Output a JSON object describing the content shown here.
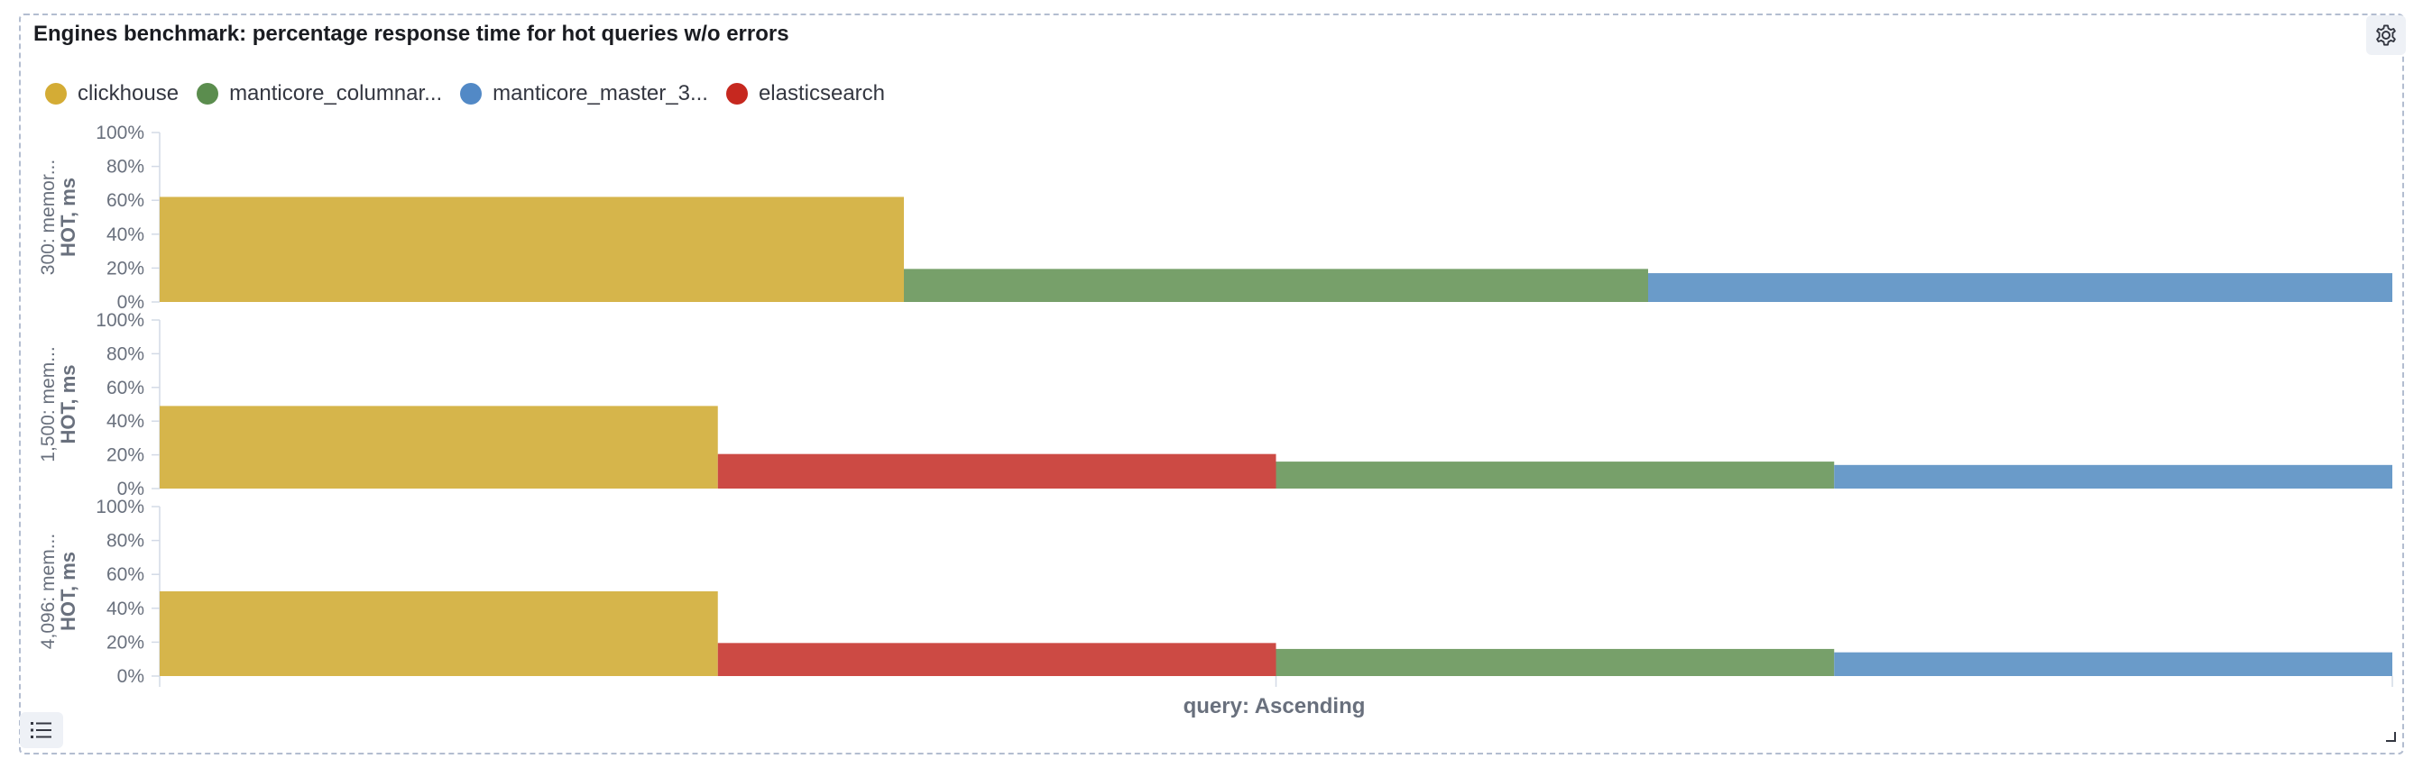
{
  "panel": {
    "title": "Engines benchmark: percentage response time for hot queries w/o errors",
    "settings_icon": "gear-icon",
    "legend_toggle_icon": "list-icon"
  },
  "colors": {
    "clickhouse": "#d6b54b",
    "manticore_columnar": "#77a06a",
    "manticore_master": "#6a9bc9",
    "elasticsearch": "#cc4a44",
    "clickhouse_legend": "#d4ac35",
    "manticore_columnar_legend": "#5b8d4e",
    "manticore_master_legend": "#5289c6",
    "elasticsearch_legend": "#c6281f"
  },
  "legend": [
    {
      "label": "clickhouse",
      "color_key": "clickhouse_legend"
    },
    {
      "label": "manticore_columnar...",
      "color_key": "manticore_columnar_legend"
    },
    {
      "label": "manticore_master_3...",
      "color_key": "manticore_master_legend"
    },
    {
      "label": "elasticsearch",
      "color_key": "elasticsearch_legend"
    }
  ],
  "chart_data": {
    "type": "bar",
    "xlabel": "query: Ascending",
    "ylim": [
      0,
      100
    ],
    "y_ticks": [
      "0%",
      "20%",
      "40%",
      "60%",
      "80%",
      "100%"
    ],
    "panels": [
      {
        "row_label": "300: memor...",
        "ylabel": "HOT, ms",
        "bars": [
          {
            "series": "clickhouse",
            "value": 62
          },
          {
            "series": "manticore_columnar",
            "value": 19.5
          },
          {
            "series": "manticore_master",
            "value": 17
          }
        ]
      },
      {
        "row_label": "1,500: mem...",
        "ylabel": "HOT, ms",
        "bars": [
          {
            "series": "clickhouse",
            "value": 49
          },
          {
            "series": "elasticsearch",
            "value": 20.5
          },
          {
            "series": "manticore_columnar",
            "value": 16
          },
          {
            "series": "manticore_master",
            "value": 14
          }
        ]
      },
      {
        "row_label": "4,096: mem...",
        "ylabel": "HOT, ms",
        "bars": [
          {
            "series": "clickhouse",
            "value": 50
          },
          {
            "series": "elasticsearch",
            "value": 19.5
          },
          {
            "series": "manticore_columnar",
            "value": 16
          },
          {
            "series": "manticore_master",
            "value": 14
          }
        ]
      }
    ]
  }
}
